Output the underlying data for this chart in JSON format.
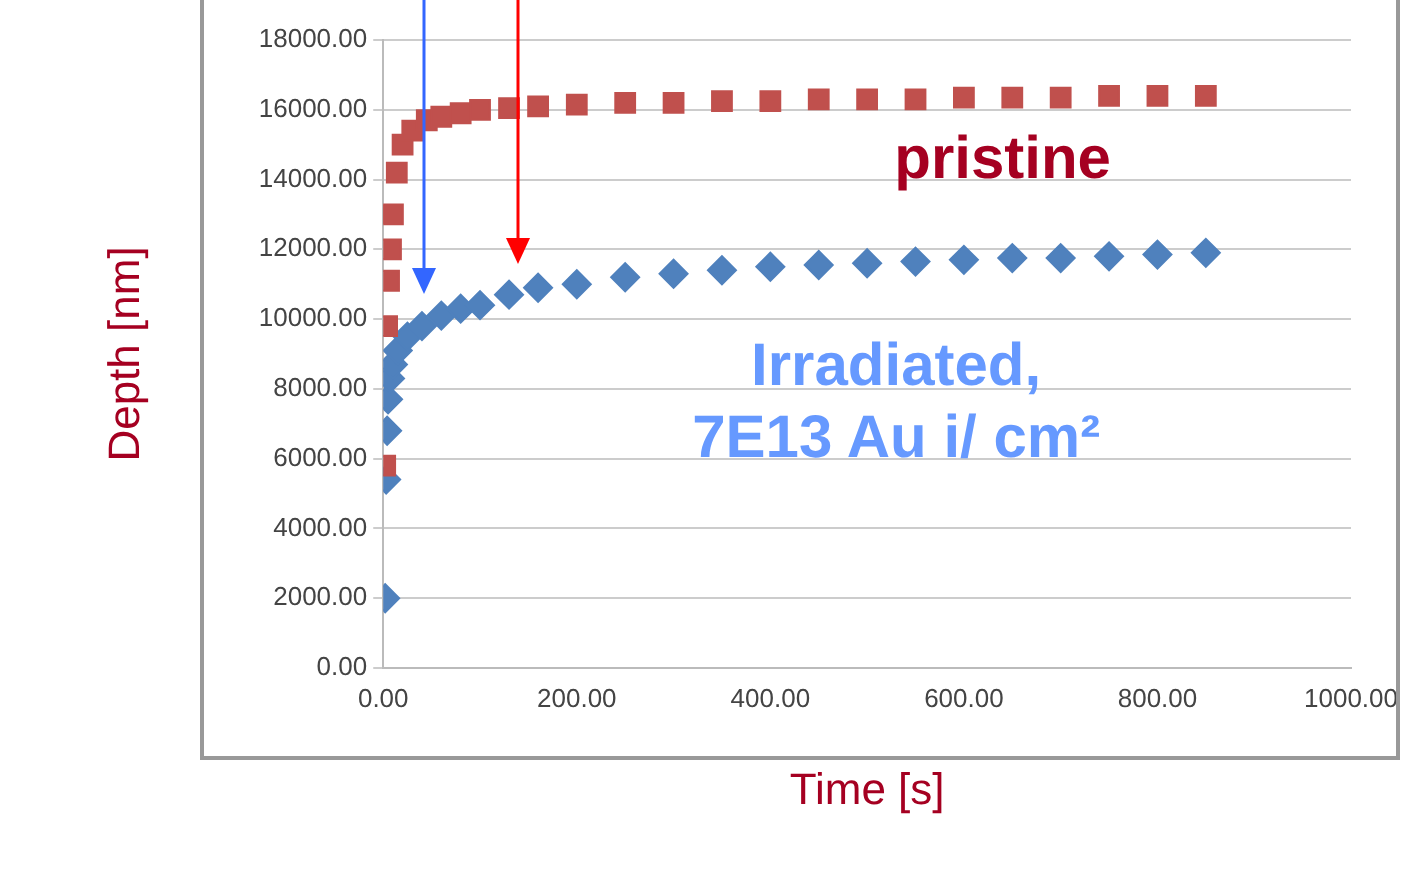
{
  "chart_data": {
    "type": "scatter",
    "xlabel": "Time [s]",
    "ylabel": "Depth [nm]",
    "xlim": [
      0,
      1000
    ],
    "xticks": [
      {
        "value": 0,
        "label": "0.00"
      },
      {
        "value": 200,
        "label": "200.00"
      },
      {
        "value": 400,
        "label": "400.00"
      },
      {
        "value": 600,
        "label": "600.00"
      },
      {
        "value": 800,
        "label": "800.00"
      },
      {
        "value": 1000,
        "label": "1000.00"
      }
    ],
    "ylim": [
      0,
      18000
    ],
    "yticks": [
      {
        "value": 0,
        "label": "0.00"
      },
      {
        "value": 2000,
        "label": "2000.00"
      },
      {
        "value": 4000,
        "label": "4000.00"
      },
      {
        "value": 6000,
        "label": "6000.00"
      },
      {
        "value": 8000,
        "label": "8000.00"
      },
      {
        "value": 10000,
        "label": "10000.00"
      },
      {
        "value": 12000,
        "label": "12000.00"
      },
      {
        "value": 14000,
        "label": "14000.00"
      },
      {
        "value": 16000,
        "label": "16000.00"
      },
      {
        "value": 18000,
        "label": "18000.00"
      }
    ],
    "grid": "y",
    "legend": false,
    "series": [
      {
        "name": "pristine",
        "color": "#c0504d",
        "marker": "square",
        "x": [
          2,
          4,
          6,
          8,
          10,
          14,
          20,
          30,
          45,
          60,
          80,
          100,
          130,
          160,
          200,
          250,
          300,
          350,
          400,
          450,
          500,
          550,
          600,
          650,
          700,
          750,
          800,
          850
        ],
        "values": [
          5800,
          9800,
          11100,
          12000,
          13000,
          14200,
          15000,
          15400,
          15700,
          15800,
          15900,
          16000,
          16050,
          16100,
          16150,
          16200,
          16200,
          16250,
          16250,
          16300,
          16300,
          16300,
          16350,
          16350,
          16350,
          16400,
          16400,
          16400
        ]
      },
      {
        "name": "Irradiated, 7E13 Au i/ cm²",
        "color": "#4f81bd",
        "marker": "diamond",
        "x": [
          2,
          3,
          4,
          5,
          7,
          10,
          15,
          25,
          40,
          60,
          80,
          100,
          130,
          160,
          200,
          250,
          300,
          350,
          400,
          450,
          500,
          550,
          600,
          650,
          700,
          750,
          800,
          850
        ],
        "values": [
          2000,
          5400,
          6800,
          7700,
          8300,
          8700,
          9100,
          9500,
          9800,
          10100,
          10300,
          10400,
          10700,
          10900,
          11000,
          11200,
          11300,
          11400,
          11500,
          11550,
          11600,
          11650,
          11700,
          11750,
          11750,
          11800,
          11850,
          11900
        ]
      }
    ]
  }
}
